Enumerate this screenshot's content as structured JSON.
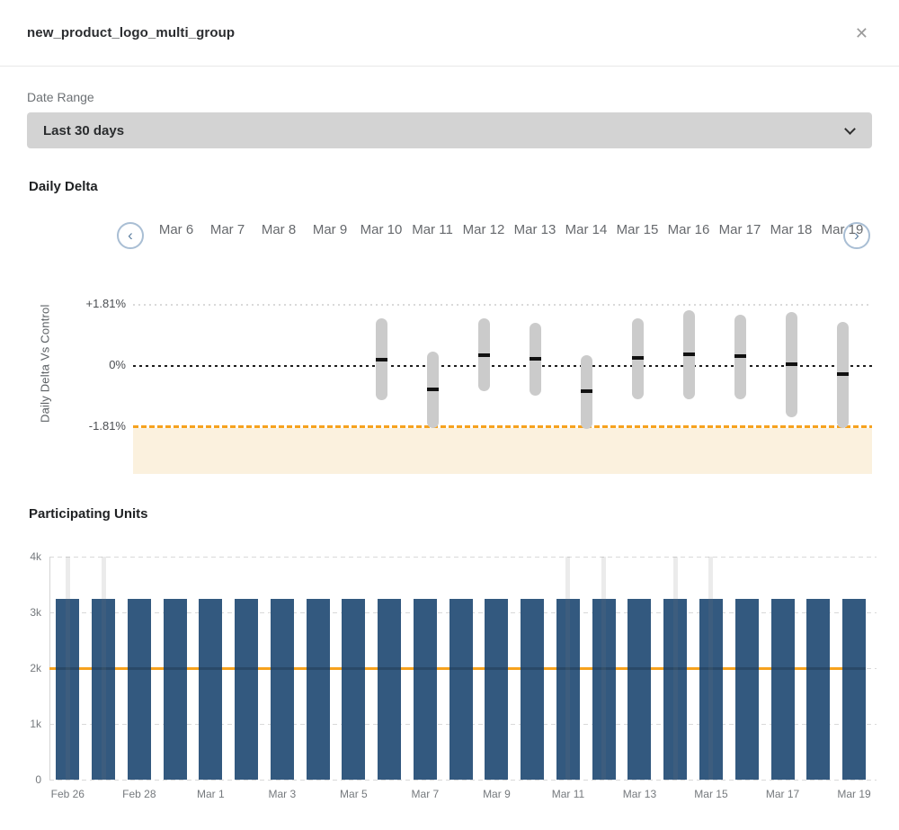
{
  "modal": {
    "title": "new_product_logo_multi_group"
  },
  "icons": {
    "close": "✕",
    "chevron_left": "‹",
    "chevron_right": "›",
    "chevron_down": "chevron-down"
  },
  "filters": {
    "date_range_label": "Date Range",
    "date_range_value": "Last 30 days"
  },
  "daily_delta": {
    "title": "Daily Delta"
  },
  "participating_units": {
    "title": "Participating Units"
  },
  "colors": {
    "bar_blue": "#33597F",
    "orange": "#F6A21E",
    "threshold_band": "#FBF1DE",
    "error_bar_gray": "#CBCBCB",
    "mean_mark_black": "#111111",
    "zero_line": "#1D1D1D",
    "gridline": "#D9D9D9"
  },
  "chart_data": [
    {
      "name": "daily_delta",
      "type": "bar",
      "subtype": "floating-error-bars",
      "title": "Daily Delta",
      "ylabel": "Daily Delta Vs Control",
      "units": "%",
      "categories": [
        "Mar 6",
        "Mar 7",
        "Mar 8",
        "Mar 9",
        "Mar 10",
        "Mar 11",
        "Mar 12",
        "Mar 13",
        "Mar 14",
        "Mar 15",
        "Mar 16",
        "Mar 17",
        "Mar 18",
        "Mar 19"
      ],
      "series": [
        {
          "name": "high",
          "values": [
            null,
            null,
            null,
            null,
            1.4,
            0.42,
            1.4,
            1.27,
            0.32,
            1.4,
            1.64,
            1.51,
            1.59,
            1.3
          ]
        },
        {
          "name": "mean",
          "values": [
            null,
            null,
            null,
            null,
            0.19,
            -0.69,
            0.32,
            0.21,
            -0.74,
            0.24,
            0.34,
            0.29,
            0.05,
            -0.24
          ]
        },
        {
          "name": "low",
          "values": [
            null,
            null,
            null,
            null,
            -1.01,
            -1.83,
            -0.74,
            -0.87,
            -1.85,
            -0.98,
            -0.98,
            -0.98,
            -1.51,
            -1.83
          ]
        }
      ],
      "yticks": [
        "+1.81%",
        "0%",
        "-1.81%"
      ],
      "ytick_values": [
        1.81,
        0,
        -1.81
      ],
      "threshold_value": -1.81,
      "ylim": [
        -3.18,
        2.92
      ],
      "grid": "dotted",
      "legend": "none"
    },
    {
      "name": "participating_units",
      "type": "bar",
      "title": "Participating Units",
      "categories": [
        "Feb 26",
        "Feb 27",
        "Feb 28",
        "Feb 29",
        "Mar 1",
        "Mar 2",
        "Mar 3",
        "Mar 4",
        "Mar 5",
        "Mar 6",
        "Mar 7",
        "Mar 8",
        "Mar 9",
        "Mar 10",
        "Mar 11",
        "Mar 12",
        "Mar 13",
        "Mar 14",
        "Mar 15",
        "Mar 16",
        "Mar 17",
        "Mar 18",
        "Mar 19"
      ],
      "values": [
        3250,
        3250,
        3250,
        3250,
        3250,
        3250,
        3250,
        3250,
        3250,
        3250,
        3250,
        3250,
        3250,
        3250,
        3250,
        3250,
        3250,
        3250,
        3250,
        3250,
        3250,
        3250,
        3250
      ],
      "x_tick_labels": [
        "Feb 26",
        "Feb 28",
        "Mar 1",
        "Mar 3",
        "Mar 5",
        "Mar 7",
        "Mar 9",
        "Mar 11",
        "Mar 13",
        "Mar 15",
        "Mar 17",
        "Mar 19"
      ],
      "yticks": [
        "4k",
        "3k",
        "2k",
        "1k",
        "0"
      ],
      "ytick_values": [
        4000,
        3000,
        2000,
        1000,
        0
      ],
      "ylim": [
        0,
        4000
      ],
      "reference_line": 2000,
      "highlighted_categories": [
        "Feb 26",
        "Feb 27",
        "Mar 11",
        "Mar 12",
        "Mar 14",
        "Mar 15"
      ],
      "grid": "dashed",
      "legend": "none"
    }
  ]
}
